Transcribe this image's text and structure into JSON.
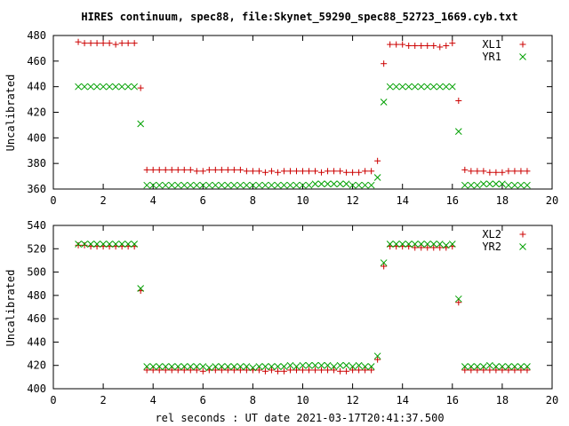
{
  "title": "HIRES continuum, spec88, file:Skynet_59290_spec88_52723_1669.cyb.txt",
  "xlabel": "rel seconds : UT date 2021-03-17T20:41:37.500",
  "colors": {
    "series1": "#cc0000",
    "series2": "#00a000"
  },
  "chart_data": [
    {
      "type": "scatter",
      "ylabel": "Uncalibrated",
      "xlim": [
        0,
        20
      ],
      "ylim": [
        360,
        480
      ],
      "xticks": [
        0,
        2,
        4,
        6,
        8,
        10,
        12,
        14,
        16,
        18,
        20
      ],
      "yticks": [
        360,
        380,
        400,
        420,
        440,
        460,
        480
      ],
      "legend_position": "top-right",
      "grid": false,
      "x": [
        1.0,
        1.25,
        1.5,
        1.75,
        2.0,
        2.25,
        2.5,
        2.75,
        3.0,
        3.25,
        3.5,
        3.75,
        4.0,
        4.25,
        4.5,
        4.75,
        5.0,
        5.25,
        5.5,
        5.75,
        6.0,
        6.25,
        6.5,
        6.75,
        7.0,
        7.25,
        7.5,
        7.75,
        8.0,
        8.25,
        8.5,
        8.75,
        9.0,
        9.25,
        9.5,
        9.75,
        10.0,
        10.25,
        10.5,
        10.75,
        11.0,
        11.25,
        11.5,
        11.75,
        12.0,
        12.25,
        12.5,
        12.75,
        13.0,
        13.25,
        13.5,
        13.75,
        14.0,
        14.25,
        14.5,
        14.75,
        15.0,
        15.25,
        15.5,
        15.75,
        16.0,
        16.25,
        16.5,
        16.75,
        17.0,
        17.25,
        17.5,
        17.75,
        18.0,
        18.25,
        18.5,
        18.75,
        19.0
      ],
      "series": [
        {
          "name": "XL1",
          "marker": "plus",
          "values": [
            475,
            474,
            474,
            474,
            474,
            474,
            473,
            474,
            474,
            474,
            439,
            375,
            375,
            375,
            375,
            375,
            375,
            375,
            375,
            374,
            374,
            375,
            375,
            375,
            375,
            375,
            375,
            374,
            374,
            374,
            373,
            374,
            373,
            374,
            374,
            374,
            374,
            374,
            374,
            373,
            374,
            374,
            374,
            373,
            373,
            373,
            374,
            374,
            382,
            458,
            473,
            473,
            473,
            472,
            472,
            472,
            472,
            472,
            471,
            472,
            474,
            429,
            375,
            374,
            374,
            374,
            373,
            373,
            373,
            374,
            374,
            374,
            374
          ]
        },
        {
          "name": "YR1",
          "marker": "cross",
          "values": [
            440,
            440,
            440,
            440,
            440,
            440,
            440,
            440,
            440,
            440,
            411,
            363,
            363,
            363,
            363,
            363,
            363,
            363,
            363,
            363,
            363,
            363,
            363,
            363,
            363,
            363,
            363,
            363,
            363,
            363,
            363,
            363,
            363,
            363,
            363,
            363,
            363,
            363,
            364,
            364,
            364,
            364,
            364,
            364,
            363,
            363,
            363,
            363,
            369,
            428,
            440,
            440,
            440,
            440,
            440,
            440,
            440,
            440,
            440,
            440,
            440,
            405,
            363,
            363,
            363,
            364,
            364,
            364,
            364,
            363,
            363,
            363,
            363
          ]
        }
      ]
    },
    {
      "type": "scatter",
      "ylabel": "Uncalibrated",
      "xlim": [
        0,
        20
      ],
      "ylim": [
        400,
        540
      ],
      "xticks": [
        0,
        2,
        4,
        6,
        8,
        10,
        12,
        14,
        16,
        18,
        20
      ],
      "yticks": [
        400,
        420,
        440,
        460,
        480,
        500,
        520,
        540
      ],
      "legend_position": "top-right",
      "grid": false,
      "x": [
        1.0,
        1.25,
        1.5,
        1.75,
        2.0,
        2.25,
        2.5,
        2.75,
        3.0,
        3.25,
        3.5,
        3.75,
        4.0,
        4.25,
        4.5,
        4.75,
        5.0,
        5.25,
        5.5,
        5.75,
        6.0,
        6.25,
        6.5,
        6.75,
        7.0,
        7.25,
        7.5,
        7.75,
        8.0,
        8.25,
        8.5,
        8.75,
        9.0,
        9.25,
        9.5,
        9.75,
        10.0,
        10.25,
        10.5,
        10.75,
        11.0,
        11.25,
        11.5,
        11.75,
        12.0,
        12.25,
        12.5,
        12.75,
        13.0,
        13.25,
        13.5,
        13.75,
        14.0,
        14.25,
        14.5,
        14.75,
        15.0,
        15.25,
        15.5,
        15.75,
        16.0,
        16.25,
        16.5,
        16.75,
        17.0,
        17.25,
        17.5,
        17.75,
        18.0,
        18.25,
        18.5,
        18.75,
        19.0
      ],
      "series": [
        {
          "name": "XL2",
          "marker": "plus",
          "values": [
            523,
            523,
            522,
            522,
            522,
            522,
            522,
            522,
            522,
            522,
            484,
            416,
            416,
            416,
            416,
            416,
            416,
            416,
            416,
            416,
            415,
            416,
            416,
            416,
            416,
            416,
            416,
            416,
            416,
            416,
            415,
            416,
            415,
            415,
            416,
            416,
            416,
            416,
            416,
            416,
            416,
            416,
            415,
            415,
            416,
            416,
            416,
            416,
            425,
            505,
            522,
            522,
            522,
            522,
            521,
            521,
            521,
            521,
            521,
            521,
            522,
            474,
            416,
            416,
            416,
            416,
            416,
            416,
            416,
            416,
            416,
            416,
            416
          ]
        },
        {
          "name": "YR2",
          "marker": "cross",
          "values": [
            524,
            524,
            524,
            524,
            524,
            524,
            524,
            524,
            524,
            524,
            486,
            419,
            419,
            419,
            419,
            419,
            419,
            419,
            419,
            419,
            419,
            418,
            419,
            419,
            419,
            419,
            419,
            419,
            418,
            419,
            419,
            419,
            419,
            419,
            420,
            419,
            420,
            420,
            420,
            420,
            420,
            419,
            420,
            420,
            419,
            420,
            419,
            419,
            428,
            508,
            524,
            524,
            524,
            524,
            524,
            524,
            524,
            524,
            524,
            523,
            524,
            477,
            419,
            419,
            419,
            419,
            420,
            419,
            419,
            419,
            419,
            419,
            419
          ]
        }
      ]
    }
  ]
}
